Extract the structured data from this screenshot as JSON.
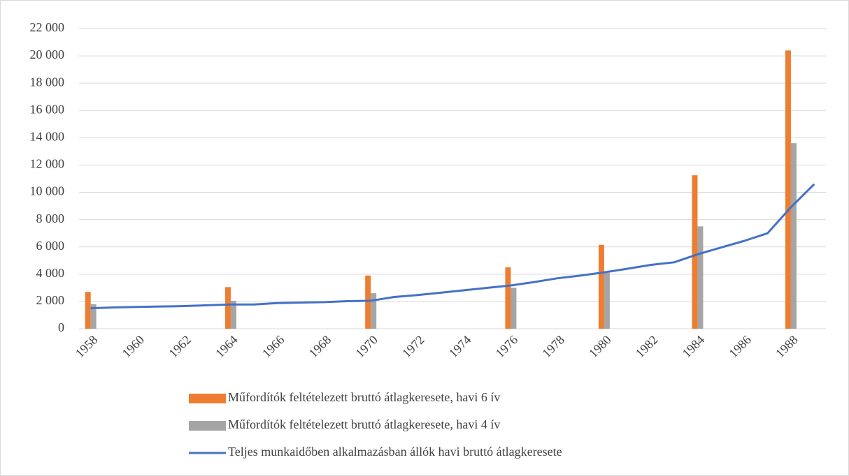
{
  "chart_data": {
    "type": "bar",
    "categories": [
      1958,
      null,
      1960,
      null,
      1962,
      null,
      1964,
      null,
      1966,
      null,
      1968,
      null,
      1970,
      null,
      1972,
      null,
      1974,
      null,
      1976,
      null,
      1978,
      null,
      1980,
      null,
      1982,
      null,
      1984,
      null,
      1986,
      null,
      1988,
      null
    ],
    "series": [
      {
        "name": "Műfordítók feltételezett bruttó átlagkeresete, havi 6 ív",
        "type": "bar",
        "color": "#ed7d31",
        "values": [
          2700,
          null,
          null,
          null,
          null,
          null,
          3050,
          null,
          null,
          null,
          null,
          null,
          3900,
          null,
          null,
          null,
          null,
          null,
          4500,
          null,
          null,
          null,
          6150,
          null,
          null,
          null,
          11250,
          null,
          null,
          null,
          20400,
          null
        ]
      },
      {
        "name": "Műfordítók feltételezett bruttó átlagkeresete, havi 4 ív",
        "type": "bar",
        "color": "#a5a5a5",
        "values": [
          1800,
          null,
          null,
          null,
          null,
          null,
          2050,
          null,
          null,
          null,
          null,
          null,
          2600,
          null,
          null,
          null,
          null,
          null,
          3000,
          null,
          null,
          null,
          4100,
          null,
          null,
          null,
          7500,
          null,
          null,
          null,
          13600,
          null
        ]
      },
      {
        "name": "Teljes munkaidőben alkalmazásban állók havi bruttó átlagkeresete",
        "type": "line",
        "color": "#4472c4",
        "values": [
          1500,
          1560,
          1600,
          1630,
          1660,
          1720,
          1780,
          1780,
          1880,
          1920,
          1950,
          2020,
          2050,
          2330,
          2470,
          2640,
          2820,
          3000,
          3170,
          3420,
          3700,
          3900,
          4130,
          4400,
          4680,
          4870,
          5450,
          5950,
          6440,
          7000,
          8900,
          10600
        ]
      }
    ],
    "ylim": [
      0,
      22000
    ],
    "yticks": [
      0,
      {
        "value": 2000,
        "label": "2 000"
      },
      {
        "value": 4000,
        "label": "4 000"
      },
      {
        "value": 6000,
        "label": "6 000"
      },
      {
        "value": 8000,
        "label": "8 000"
      },
      {
        "value": 10000,
        "label": "10 000"
      },
      {
        "value": 12000,
        "label": "12 000"
      },
      {
        "value": 14000,
        "label": "14 000"
      },
      {
        "value": 16000,
        "label": "16 000"
      },
      {
        "value": 18000,
        "label": "18 000"
      },
      {
        "value": 20000,
        "label": "20 000"
      },
      {
        "value": 22000,
        "label": "22 000"
      }
    ],
    "grid": true,
    "legend": "bottom"
  }
}
